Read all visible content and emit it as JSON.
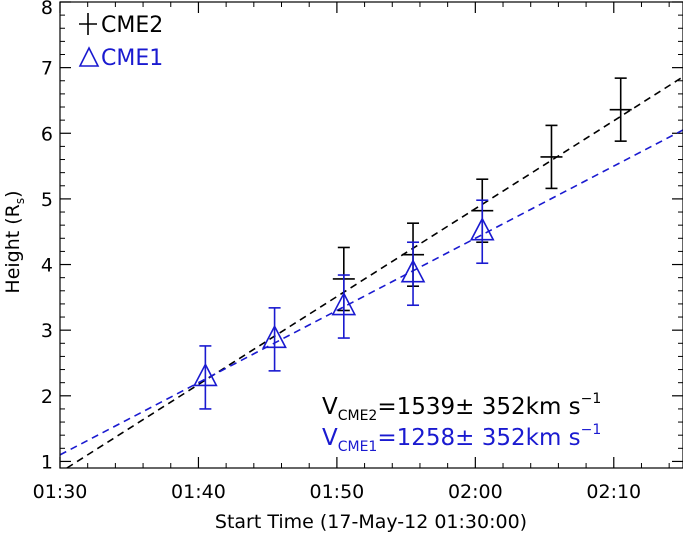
{
  "chart_data": {
    "type": "scatter",
    "title": "",
    "xlabel": "Start Time (17-May-12 01:30:00)",
    "ylabel_main": "Height (R",
    "ylabel_sub": "s",
    "ylabel_close": ")",
    "xlim": [
      0,
      45
    ],
    "ylim": [
      0.9,
      8
    ],
    "x_ticks": [
      {
        "value": 0,
        "label": "01:30"
      },
      {
        "value": 10,
        "label": "01:40"
      },
      {
        "value": 20,
        "label": "01:50"
      },
      {
        "value": 30,
        "label": "02:00"
      },
      {
        "value": 40,
        "label": "02:10"
      }
    ],
    "y_ticks": [
      1,
      2,
      3,
      4,
      5,
      6,
      7,
      8
    ],
    "series": [
      {
        "name": "CME2",
        "marker": "plus",
        "color": "#000000",
        "x": [
          20.5,
          25.5,
          30.5,
          35.5,
          40.5
        ],
        "y": [
          3.78,
          4.15,
          4.82,
          5.64,
          6.36
        ],
        "err": [
          0.48,
          0.48,
          0.48,
          0.48,
          0.48
        ],
        "fit": {
          "x": [
            0.5,
            45
          ],
          "y": [
            0.9,
            6.86
          ]
        }
      },
      {
        "name": "CME1",
        "marker": "triangle",
        "color": "#1a1ad0",
        "x": [
          10.5,
          15.5,
          20.5,
          25.5,
          30.5
        ],
        "y": [
          2.28,
          2.86,
          3.36,
          3.86,
          4.5
        ],
        "err": [
          0.48,
          0.48,
          0.48,
          0.48,
          0.48
        ],
        "fit": {
          "x": [
            0,
            45
          ],
          "y": [
            1.1,
            6.05
          ]
        }
      }
    ],
    "legend": {
      "position": "top-left",
      "entries": [
        {
          "label": "CME2",
          "marker": "plus",
          "color": "#000000"
        },
        {
          "label": "CME1",
          "marker": "triangle",
          "color": "#1a1ad0"
        }
      ]
    },
    "annotations": [
      {
        "prefix": "V",
        "sub": "CME2",
        "text": "=1539± 352km s",
        "sup": "−1",
        "color": "#000000"
      },
      {
        "prefix": "V",
        "sub": "CME1",
        "text": "=1258± 352km s",
        "sup": "−1",
        "color": "#1a1ad0"
      }
    ]
  }
}
